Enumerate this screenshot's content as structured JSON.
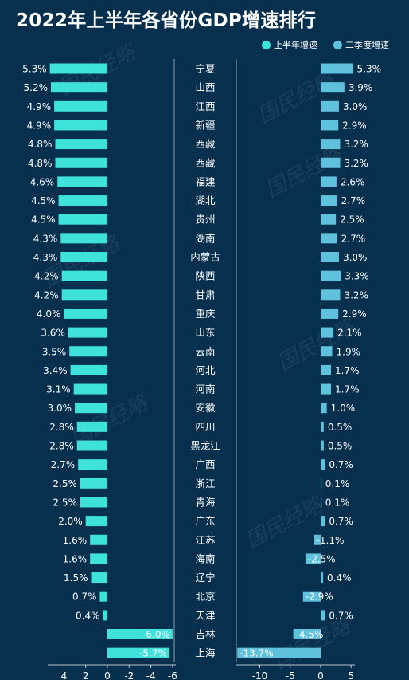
{
  "title": "2022年上半年各省份GDP增速排行",
  "legend": [
    {
      "label": "上半年增速",
      "color": "#3ee2da"
    },
    {
      "label": "二季度增速",
      "color": "#5fc1dc"
    }
  ],
  "watermark": "国民经略",
  "chart_data": {
    "type": "bar",
    "orientation": "horizontal",
    "categories": [
      "宁夏",
      "山西",
      "江西",
      "新疆",
      "西藏",
      "西藏",
      "福建",
      "湖北",
      "贵州",
      "湖南",
      "内蒙古",
      "陕西",
      "甘肃",
      "重庆",
      "山东",
      "云南",
      "河北",
      "河南",
      "安徽",
      "四川",
      "黑龙江",
      "广西",
      "浙江",
      "青海",
      "广东",
      "江苏",
      "海南",
      "辽宁",
      "北京",
      "天津",
      "吉林",
      "上海"
    ],
    "series": [
      {
        "name": "上半年增速",
        "values": [
          5.3,
          5.2,
          4.9,
          4.9,
          4.8,
          4.8,
          4.6,
          4.5,
          4.5,
          4.3,
          4.3,
          4.2,
          4.2,
          4.0,
          3.6,
          3.5,
          3.4,
          3.1,
          3.0,
          2.8,
          2.8,
          2.7,
          2.5,
          2.5,
          2.0,
          1.6,
          1.6,
          1.5,
          0.7,
          0.4,
          -6.0,
          -5.7
        ],
        "labels": [
          "5.3%",
          "5.2%",
          "4.9%",
          "4.9%",
          "4.8%",
          "4.8%",
          "4.6%",
          "4.5%",
          "4.5%",
          "4.3%",
          "4.3%",
          "4.2%",
          "4.2%",
          "4.0%",
          "3.6%",
          "3.5%",
          "3.4%",
          "3.1%",
          "3.0%",
          "2.8%",
          "2.8%",
          "2.7%",
          "2.5%",
          "2.5%",
          "2.0%",
          "1.6%",
          "1.6%",
          "1.5%",
          "0.7%",
          "0.4%",
          "-6.0%",
          "-5.7%"
        ],
        "axis": {
          "direction": "reversed",
          "ticks": [
            4,
            2,
            0,
            -2,
            -4,
            -6
          ],
          "tick_labels": [
            "4",
            "2",
            "0",
            "-2",
            "-4",
            "-6"
          ],
          "xlim": [
            -6,
            6
          ]
        }
      },
      {
        "name": "二季度增速",
        "values": [
          5.3,
          3.9,
          3.0,
          2.9,
          3.2,
          3.2,
          2.6,
          2.7,
          2.5,
          2.7,
          3.0,
          3.3,
          3.2,
          2.9,
          2.1,
          1.9,
          1.7,
          1.7,
          1.0,
          0.5,
          0.5,
          0.7,
          0.1,
          0.1,
          0.7,
          -1.1,
          -2.5,
          0.4,
          -2.9,
          0.7,
          -4.5,
          -13.7
        ],
        "labels": [
          "5.3%",
          "3.9%",
          "3.0%",
          "2.9%",
          "3.2%",
          "3.2%",
          "2.6%",
          "2.7%",
          "2.5%",
          "2.7%",
          "3.0%",
          "3.3%",
          "3.2%",
          "2.9%",
          "2.1%",
          "1.9%",
          "1.7%",
          "1.7%",
          "1.0%",
          "0.5%",
          "0.5%",
          "0.7%",
          "0.1%",
          "0.1%",
          "0.7%",
          "-1.1%",
          "-2.5%",
          "0.4%",
          "-2.9%",
          "0.7%",
          "-4.5%",
          "-13.7%"
        ],
        "axis": {
          "direction": "normal",
          "ticks": [
            -10,
            -5,
            0,
            5
          ],
          "tick_labels": [
            "-10",
            "-5",
            "0",
            "5"
          ],
          "xlim": [
            -14.5,
            5.5
          ]
        }
      }
    ],
    "grid": false,
    "legend_position": "top-right"
  }
}
